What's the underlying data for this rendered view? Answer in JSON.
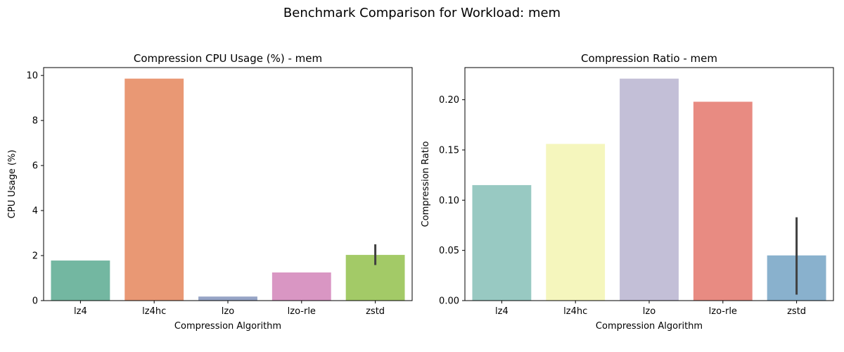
{
  "figure": {
    "suptitle": "Benchmark Comparison for Workload: mem"
  },
  "chart_data": [
    {
      "type": "bar",
      "title": "Compression CPU Usage (%) - mem",
      "xlabel": "Compression Algorithm",
      "ylabel": "CPU Usage (%)",
      "categories": [
        "lz4",
        "lz4hc",
        "lzo",
        "lzo-rle",
        "zstd"
      ],
      "values": [
        1.78,
        9.86,
        0.18,
        1.25,
        2.03
      ],
      "error_bars": [
        null,
        null,
        null,
        null,
        [
          1.58,
          2.5
        ]
      ],
      "ylim": [
        0,
        10.35
      ],
      "yticks": [
        0,
        2,
        4,
        6,
        8,
        10
      ],
      "ytick_labels": [
        "0",
        "2",
        "4",
        "6",
        "8",
        "10"
      ],
      "colors": [
        "#73b7a1",
        "#e99874",
        "#96a4c6",
        "#d996c3",
        "#a3ca67"
      ],
      "grid": false,
      "legend": "none"
    },
    {
      "type": "bar",
      "title": "Compression Ratio - mem",
      "xlabel": "Compression Algorithm",
      "ylabel": "Compression Ratio",
      "categories": [
        "lz4",
        "lz4hc",
        "lzo",
        "lzo-rle",
        "zstd"
      ],
      "values": [
        0.115,
        0.156,
        0.221,
        0.198,
        0.045
      ],
      "error_bars": [
        null,
        null,
        null,
        null,
        [
          0.006,
          0.083
        ]
      ],
      "ylim": [
        0,
        0.232
      ],
      "yticks": [
        0,
        0.05,
        0.1,
        0.15,
        0.2
      ],
      "ytick_labels": [
        "0.00",
        "0.05",
        "0.10",
        "0.15",
        "0.20"
      ],
      "colors": [
        "#98c9c2",
        "#f5f6bd",
        "#c3bfd7",
        "#e88b82",
        "#89b1cd"
      ],
      "grid": false,
      "legend": "none"
    }
  ]
}
